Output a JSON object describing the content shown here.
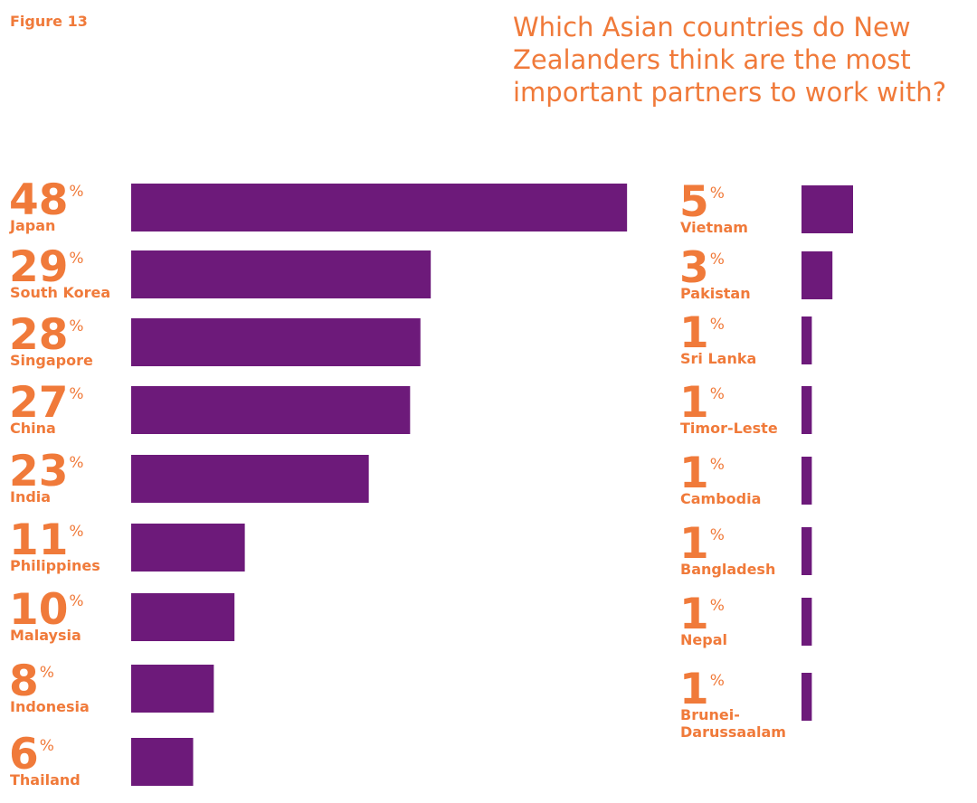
{
  "figure_label": "Figure 13",
  "chart_data": {
    "type": "bar",
    "orientation": "horizontal",
    "title": "Which Asian countries do New Zealanders think are the most important partners to work with?",
    "unit": "%",
    "bar_color": "#6d1a7a",
    "label_color": "#f07a3a",
    "panels": [
      {
        "categories": [
          "Japan",
          "South Korea",
          "Singapore",
          "China",
          "India",
          "Philippines",
          "Malaysia",
          "Indonesia",
          "Thailand"
        ],
        "values": [
          48,
          29,
          28,
          27,
          23,
          11,
          10,
          8,
          6
        ]
      },
      {
        "categories": [
          "Vietnam",
          "Pakistan",
          "Sri Lanka",
          "Timor-Leste",
          "Cambodia",
          "Bangladesh",
          "Nepal",
          "Brunei-Darussaalam"
        ],
        "values": [
          5,
          3,
          1,
          1,
          1,
          1,
          1,
          1
        ]
      }
    ]
  }
}
